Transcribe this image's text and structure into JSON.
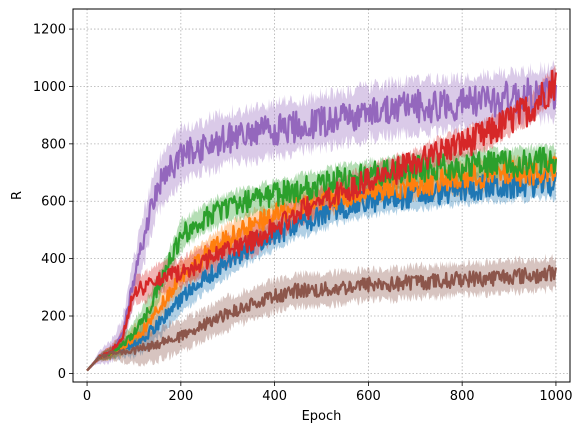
{
  "chart_data": {
    "type": "line",
    "title": "",
    "xlabel": "Epoch",
    "ylabel": "R",
    "xlim": [
      -30,
      1030
    ],
    "ylim": [
      -30,
      1270
    ],
    "xticks": [
      0,
      200,
      400,
      600,
      800,
      1000
    ],
    "yticks": [
      0,
      200,
      400,
      600,
      800,
      1000,
      1200
    ],
    "grid": true,
    "grid_style": "dotted",
    "legend": "none",
    "shaded_band": true,
    "x_points": [
      0,
      25,
      50,
      75,
      100,
      125,
      150,
      200,
      250,
      300,
      350,
      400,
      450,
      500,
      550,
      600,
      650,
      700,
      750,
      800,
      850,
      900,
      950,
      1000
    ],
    "series": [
      {
        "color": "#9467bd",
        "band_halfwidth": 90,
        "values": [
          10,
          55,
          75,
          130,
          330,
          500,
          650,
          760,
          790,
          820,
          830,
          850,
          860,
          880,
          890,
          910,
          920,
          930,
          935,
          940,
          950,
          960,
          970,
          980
        ]
      },
      {
        "color": "#d62728",
        "band_halfwidth": 50,
        "values": [
          10,
          55,
          75,
          120,
          290,
          300,
          330,
          350,
          390,
          430,
          460,
          510,
          560,
          600,
          640,
          670,
          700,
          730,
          770,
          800,
          830,
          880,
          930,
          1020
        ]
      },
      {
        "color": "#2ca02c",
        "band_halfwidth": 50,
        "values": [
          10,
          55,
          70,
          100,
          140,
          200,
          290,
          480,
          540,
          580,
          600,
          620,
          640,
          660,
          680,
          690,
          700,
          710,
          720,
          720,
          730,
          730,
          740,
          740
        ]
      },
      {
        "color": "#ff7f0e",
        "band_halfwidth": 50,
        "values": [
          10,
          55,
          70,
          90,
          120,
          160,
          220,
          340,
          410,
          470,
          510,
          550,
          580,
          600,
          620,
          640,
          650,
          660,
          670,
          680,
          690,
          700,
          700,
          710
        ]
      },
      {
        "color": "#1f77b4",
        "band_halfwidth": 50,
        "values": [
          10,
          55,
          70,
          85,
          100,
          130,
          170,
          260,
          330,
          390,
          440,
          480,
          520,
          550,
          580,
          600,
          610,
          620,
          630,
          640,
          650,
          650,
          660,
          660
        ]
      },
      {
        "color": "#8c564b",
        "band_halfwidth": 55,
        "values": [
          10,
          55,
          70,
          75,
          80,
          90,
          100,
          130,
          170,
          210,
          240,
          270,
          290,
          290,
          300,
          310,
          310,
          320,
          320,
          330,
          330,
          340,
          340,
          350
        ]
      }
    ]
  }
}
